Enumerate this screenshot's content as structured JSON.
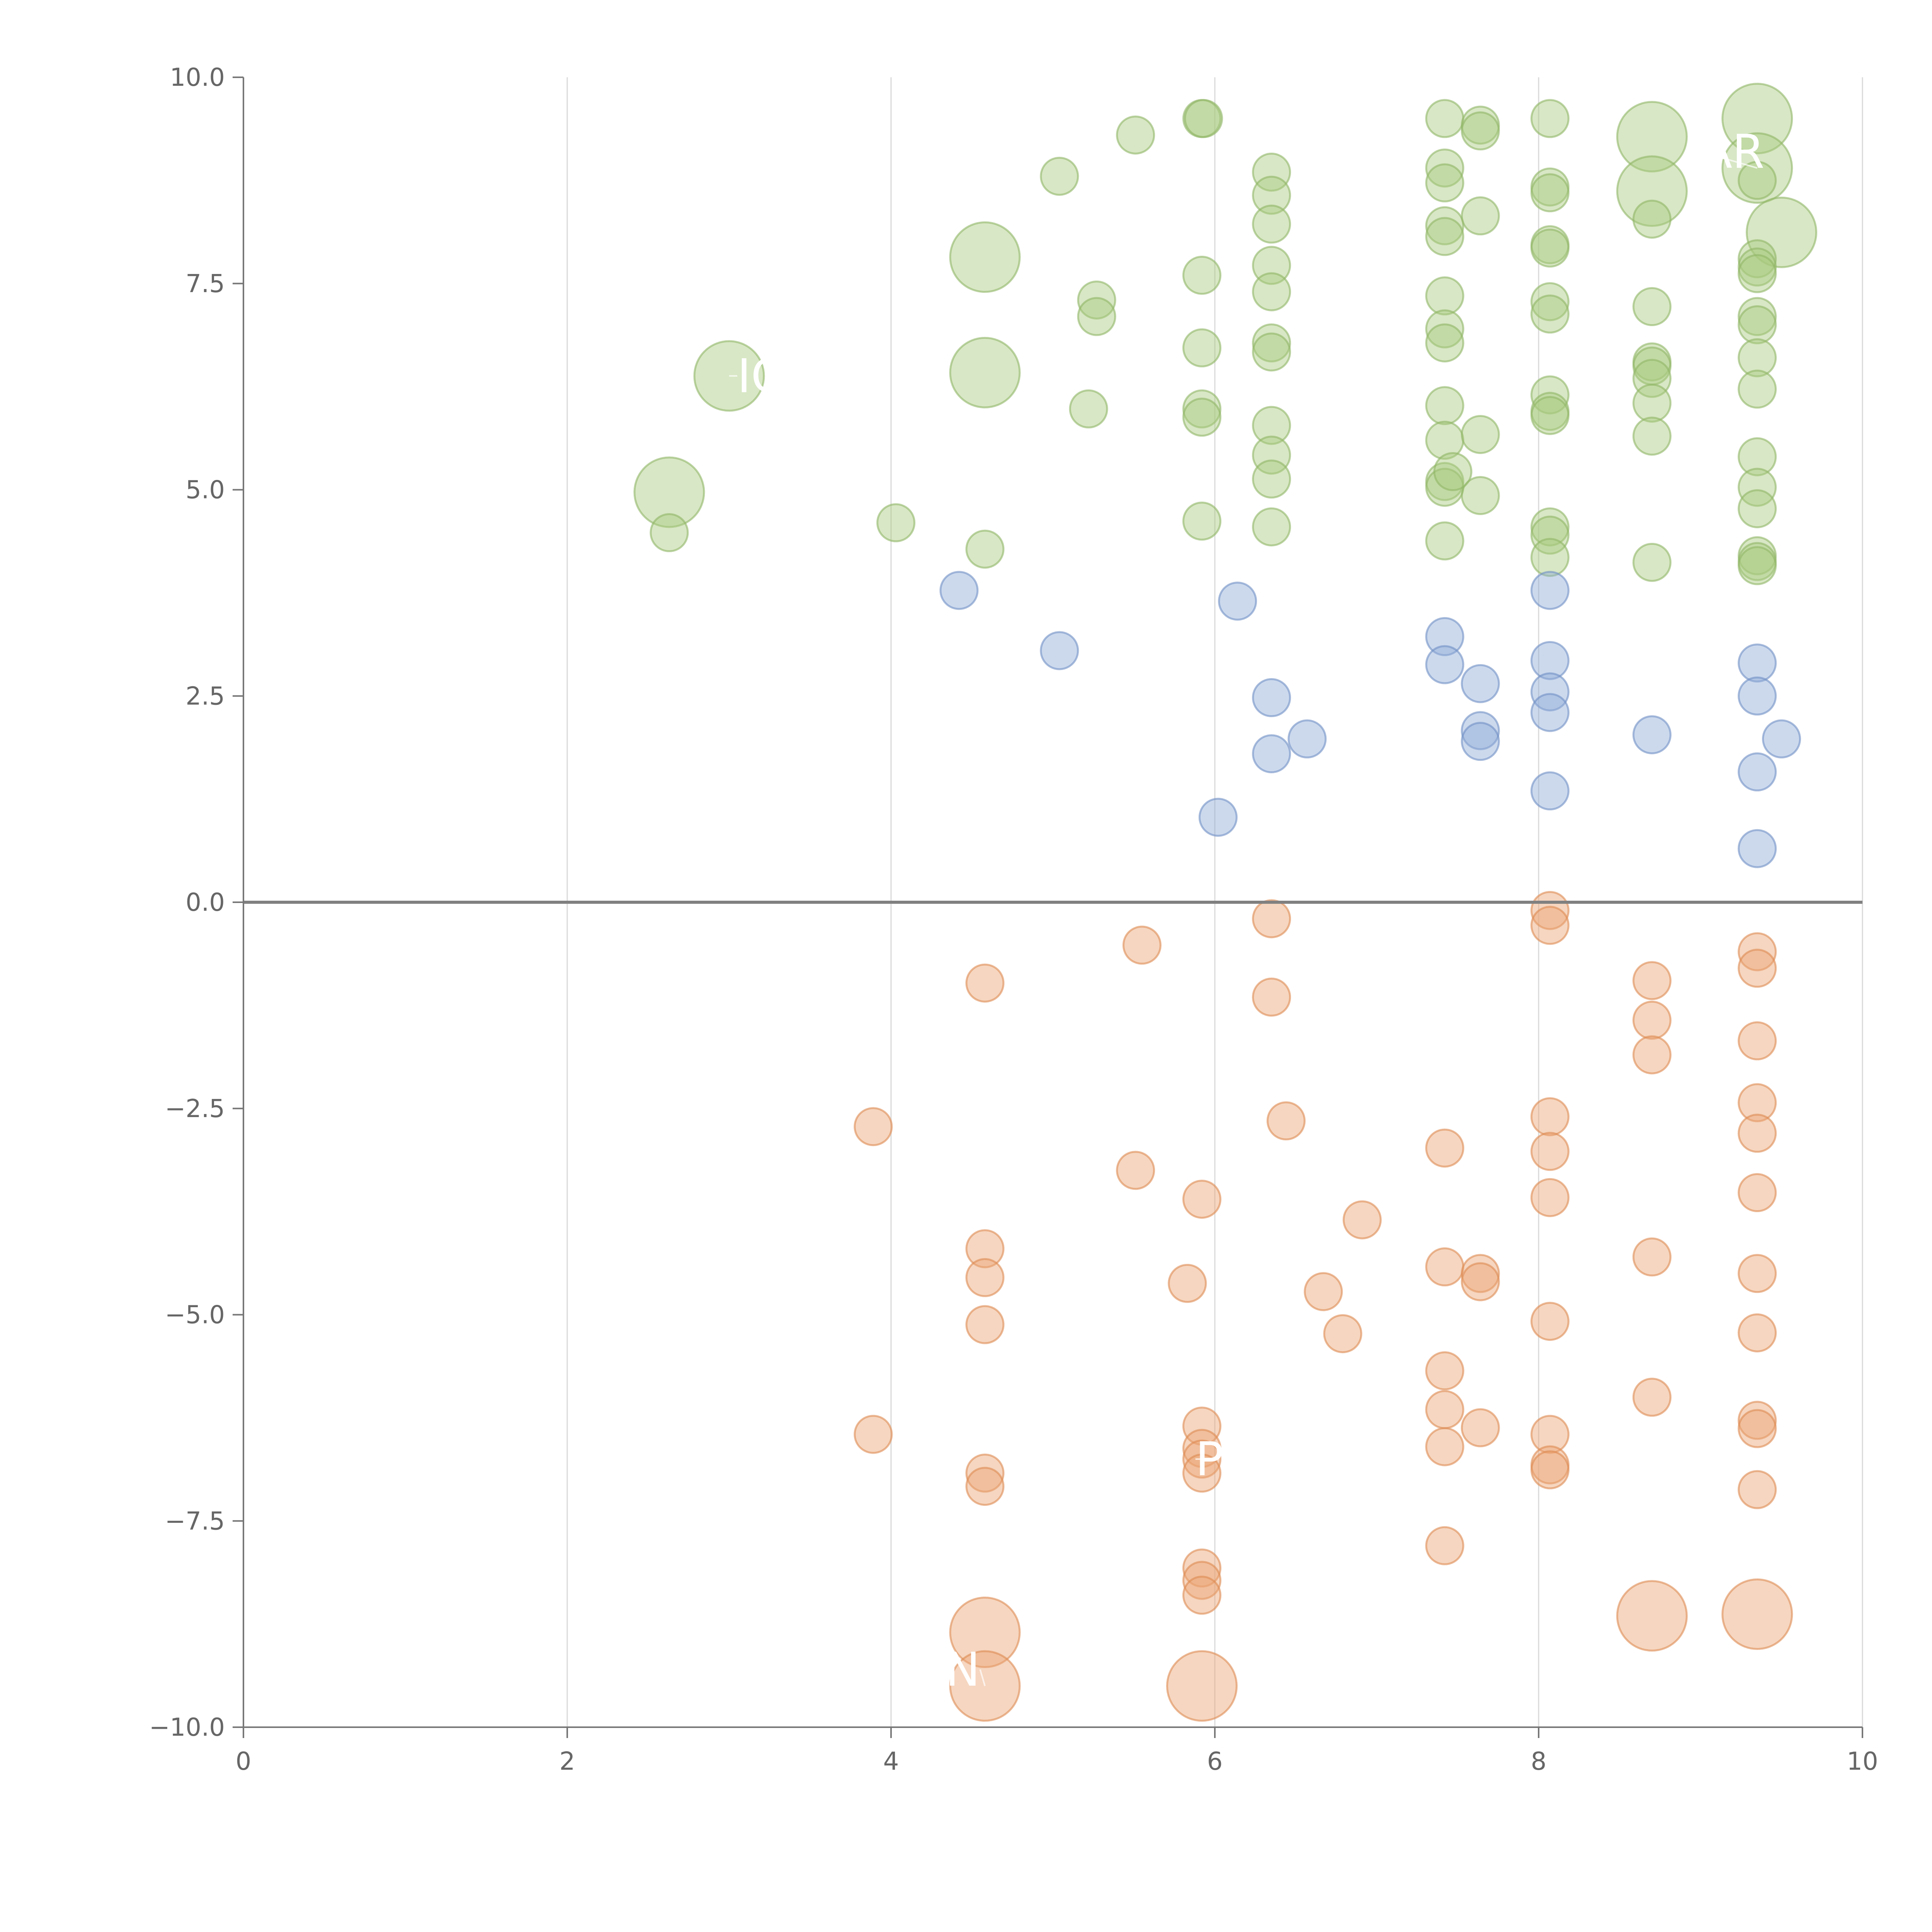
{
  "chart_data": {
    "type": "scatter",
    "title": "",
    "xlabel": "",
    "ylabel": "",
    "xlim": [
      0,
      10
    ],
    "ylim": [
      -10,
      10
    ],
    "grid": "vertical",
    "x_ticks": [
      "0",
      "2",
      "4",
      "6",
      "8",
      "10"
    ],
    "y_ticks": [
      "10.0",
      "7.5",
      "5.0",
      "2.5",
      "0.0",
      "−2.5",
      "−5.0",
      "−7.5",
      "−10.0"
    ],
    "x_tick_values": [
      0,
      2,
      4,
      6,
      8,
      10
    ],
    "y_tick_values": [
      10,
      7.5,
      5,
      2.5,
      0,
      -2.5,
      -5,
      -7.5,
      -10
    ],
    "reference_line_y": 0,
    "colors": {
      "green": "#a8c97f",
      "green_stroke": "#8fb565",
      "blue": "#8fabd6",
      "blue_stroke": "#6f8fc4",
      "orange": "#eba573",
      "orange_stroke": "#dd8a52",
      "axis": "#777777",
      "grid": "#d9d9d9"
    },
    "series": [
      {
        "name": "green",
        "color_key": "green",
        "points": [
          [
            5.92,
            9.5
          ],
          [
            5.93,
            9.5
          ],
          [
            5.51,
            9.3
          ],
          [
            5.04,
            8.8
          ],
          [
            4.58,
            7.82
          ],
          [
            3.0,
            6.38
          ],
          [
            4.58,
            6.42
          ],
          [
            2.63,
            4.97
          ],
          [
            2.63,
            4.48
          ],
          [
            4.03,
            4.6
          ],
          [
            4.58,
            4.28
          ],
          [
            5.27,
            7.3
          ],
          [
            5.27,
            7.1
          ],
          [
            5.22,
            5.98
          ],
          [
            5.92,
            7.6
          ],
          [
            5.92,
            6.72
          ],
          [
            5.92,
            5.98
          ],
          [
            5.92,
            5.88
          ],
          [
            5.92,
            4.62
          ],
          [
            6.35,
            8.85
          ],
          [
            6.35,
            8.57
          ],
          [
            6.35,
            8.22
          ],
          [
            6.35,
            7.72
          ],
          [
            6.35,
            7.4
          ],
          [
            6.35,
            6.78
          ],
          [
            6.35,
            6.67
          ],
          [
            6.35,
            5.78
          ],
          [
            6.35,
            5.42
          ],
          [
            6.35,
            5.13
          ],
          [
            6.35,
            4.55
          ],
          [
            7.42,
            9.5
          ],
          [
            7.42,
            8.9
          ],
          [
            7.42,
            8.72
          ],
          [
            7.42,
            8.2
          ],
          [
            7.42,
            8.07
          ],
          [
            7.42,
            7.35
          ],
          [
            7.42,
            6.95
          ],
          [
            7.42,
            6.78
          ],
          [
            7.42,
            6.02
          ],
          [
            7.42,
            5.6
          ],
          [
            7.42,
            5.1
          ],
          [
            7.42,
            5.03
          ],
          [
            7.42,
            4.38
          ],
          [
            7.64,
            9.42
          ],
          [
            7.64,
            9.35
          ],
          [
            7.64,
            8.32
          ],
          [
            7.64,
            5.67
          ],
          [
            7.47,
            5.22
          ],
          [
            7.64,
            4.93
          ],
          [
            8.07,
            9.5
          ],
          [
            8.07,
            8.67
          ],
          [
            8.07,
            8.6
          ],
          [
            8.07,
            7.97
          ],
          [
            8.07,
            7.93
          ],
          [
            8.07,
            7.28
          ],
          [
            8.07,
            7.13
          ],
          [
            8.07,
            6.15
          ],
          [
            8.07,
            5.95
          ],
          [
            8.07,
            5.9
          ],
          [
            8.07,
            4.55
          ],
          [
            8.07,
            4.45
          ],
          [
            8.07,
            4.18
          ],
          [
            8.7,
            9.28
          ],
          [
            8.7,
            8.62
          ],
          [
            8.7,
            8.28
          ],
          [
            8.7,
            7.22
          ],
          [
            8.7,
            6.55
          ],
          [
            8.7,
            6.5
          ],
          [
            8.7,
            6.35
          ],
          [
            8.7,
            6.05
          ],
          [
            8.7,
            5.65
          ],
          [
            8.7,
            4.12
          ],
          [
            9.35,
            9.5
          ],
          [
            9.35,
            8.9
          ],
          [
            9.35,
            8.75
          ],
          [
            9.5,
            8.12
          ],
          [
            9.35,
            7.8
          ],
          [
            9.35,
            7.7
          ],
          [
            9.35,
            7.62
          ],
          [
            9.35,
            7.1
          ],
          [
            9.35,
            7.0
          ],
          [
            9.35,
            6.6
          ],
          [
            9.35,
            6.22
          ],
          [
            9.35,
            5.4
          ],
          [
            9.35,
            5.03
          ],
          [
            9.35,
            4.77
          ],
          [
            9.35,
            4.2
          ],
          [
            9.35,
            4.13
          ],
          [
            9.35,
            4.08
          ]
        ]
      },
      {
        "name": "blue",
        "color_key": "blue",
        "points": [
          [
            4.42,
            3.78
          ],
          [
            5.04,
            3.05
          ],
          [
            6.14,
            3.65
          ],
          [
            6.35,
            2.48
          ],
          [
            6.35,
            1.8
          ],
          [
            6.57,
            1.98
          ],
          [
            6.02,
            1.03
          ],
          [
            7.42,
            3.22
          ],
          [
            7.42,
            2.88
          ],
          [
            7.64,
            2.65
          ],
          [
            7.64,
            2.08
          ],
          [
            7.64,
            1.95
          ],
          [
            8.07,
            3.78
          ],
          [
            8.07,
            2.93
          ],
          [
            8.07,
            2.55
          ],
          [
            8.07,
            2.3
          ],
          [
            8.07,
            1.35
          ],
          [
            8.7,
            2.03
          ],
          [
            9.35,
            2.9
          ],
          [
            9.35,
            2.5
          ],
          [
            9.5,
            1.98
          ],
          [
            9.35,
            1.58
          ],
          [
            9.35,
            0.65
          ]
        ]
      },
      {
        "name": "orange",
        "color_key": "orange",
        "points": [
          [
            3.89,
            -2.72
          ],
          [
            3.89,
            -6.45
          ],
          [
            4.58,
            -0.98
          ],
          [
            4.58,
            -4.2
          ],
          [
            4.58,
            -4.55
          ],
          [
            4.58,
            -5.12
          ],
          [
            4.58,
            -6.92
          ],
          [
            4.58,
            -7.08
          ],
          [
            4.58,
            -8.85
          ],
          [
            4.58,
            -9.5
          ],
          [
            5.55,
            -0.52
          ],
          [
            5.51,
            -3.25
          ],
          [
            5.83,
            -4.62
          ],
          [
            5.92,
            -3.6
          ],
          [
            5.92,
            -6.35
          ],
          [
            5.92,
            -6.62
          ],
          [
            5.92,
            -6.75
          ],
          [
            5.92,
            -6.92
          ],
          [
            5.92,
            -8.07
          ],
          [
            5.92,
            -8.22
          ],
          [
            5.92,
            -8.4
          ],
          [
            5.92,
            -9.5
          ],
          [
            6.35,
            -0.2
          ],
          [
            6.35,
            -1.15
          ],
          [
            6.44,
            -2.65
          ],
          [
            6.67,
            -4.72
          ],
          [
            6.79,
            -5.23
          ],
          [
            6.91,
            -3.85
          ],
          [
            7.42,
            -2.98
          ],
          [
            7.42,
            -4.42
          ],
          [
            7.42,
            -5.68
          ],
          [
            7.42,
            -6.15
          ],
          [
            7.42,
            -6.6
          ],
          [
            7.42,
            -7.8
          ],
          [
            7.64,
            -4.5
          ],
          [
            7.64,
            -4.6
          ],
          [
            7.64,
            -6.37
          ],
          [
            8.07,
            -0.1
          ],
          [
            8.07,
            -0.28
          ],
          [
            8.07,
            -2.6
          ],
          [
            8.07,
            -3.02
          ],
          [
            8.07,
            -3.58
          ],
          [
            8.07,
            -5.08
          ],
          [
            8.07,
            -6.45
          ],
          [
            8.07,
            -6.82
          ],
          [
            8.07,
            -6.88
          ],
          [
            8.7,
            -0.95
          ],
          [
            8.7,
            -1.43
          ],
          [
            8.7,
            -1.85
          ],
          [
            8.7,
            -4.3
          ],
          [
            8.7,
            -6.0
          ],
          [
            8.7,
            -8.65
          ],
          [
            9.35,
            -0.6
          ],
          [
            9.35,
            -0.8
          ],
          [
            9.35,
            -1.68
          ],
          [
            9.35,
            -2.43
          ],
          [
            9.35,
            -2.8
          ],
          [
            9.35,
            -3.52
          ],
          [
            9.35,
            -4.5
          ],
          [
            9.35,
            -5.22
          ],
          [
            9.35,
            -6.28
          ],
          [
            9.35,
            -6.38
          ],
          [
            9.35,
            -7.12
          ],
          [
            9.35,
            -8.63
          ]
        ]
      }
    ],
    "large_bubbles": [
      {
        "series": "green",
        "x": 5.92,
        "y": 9.5,
        "size": "small"
      },
      {
        "series": "green",
        "x": 4.58,
        "y": 7.82,
        "size": "large"
      },
      {
        "series": "green",
        "x": 3.0,
        "y": 6.38,
        "size": "large"
      },
      {
        "series": "green",
        "x": 4.58,
        "y": 6.42,
        "size": "large"
      },
      {
        "series": "green",
        "x": 2.63,
        "y": 4.97,
        "size": "large"
      },
      {
        "series": "green",
        "x": 8.7,
        "y": 9.28,
        "size": "large"
      },
      {
        "series": "green",
        "x": 8.7,
        "y": 8.62,
        "size": "large"
      },
      {
        "series": "green",
        "x": 9.35,
        "y": 9.5,
        "size": "large"
      },
      {
        "series": "green",
        "x": 9.35,
        "y": 8.9,
        "size": "large"
      },
      {
        "series": "green",
        "x": 9.5,
        "y": 8.12,
        "size": "large"
      },
      {
        "series": "orange",
        "x": 4.58,
        "y": -8.85,
        "size": "large"
      },
      {
        "series": "orange",
        "x": 4.58,
        "y": -9.5,
        "size": "large"
      },
      {
        "series": "orange",
        "x": 5.92,
        "y": -9.5,
        "size": "large"
      },
      {
        "series": "orange",
        "x": 8.7,
        "y": -8.65,
        "size": "large"
      },
      {
        "series": "orange",
        "x": 9.35,
        "y": -8.63,
        "size": "large"
      }
    ],
    "annotations": [
      {
        "text": "IC",
        "x": 3.0,
        "y": 6.38,
        "lx": 3.05,
        "ly": 6.38,
        "anchor": "start"
      },
      {
        "text": "P",
        "x": 5.92,
        "y": -6.75,
        "lx": 5.88,
        "ly": -6.75,
        "anchor": "start"
      },
      {
        "text": "AR",
        "x": 9.35,
        "y": 8.9,
        "lx": 9.0,
        "ly": 9.1,
        "anchor": "start"
      },
      {
        "text": "N",
        "x": 4.58,
        "y": -9.5,
        "lx": 4.55,
        "ly": -9.3,
        "anchor": "end"
      }
    ]
  }
}
